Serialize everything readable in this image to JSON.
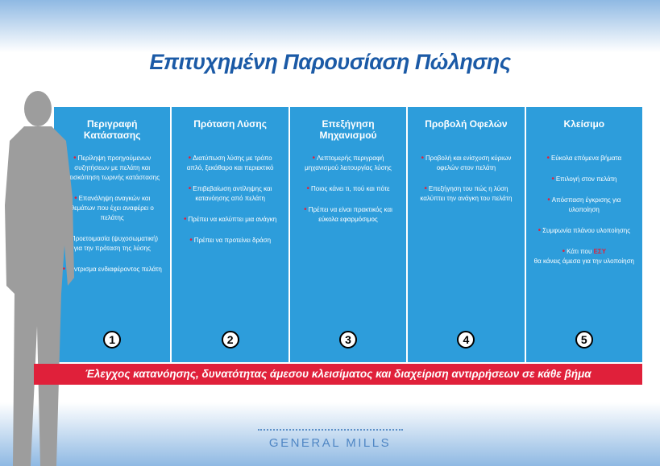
{
  "title": "Επιτυχημένη Παρουσίαση Πώλησης",
  "columns": [
    {
      "heading": "Περιγραφή Κατάστασης",
      "number": 1,
      "items": [
        "Περίληψη προηγούμενων συζητήσεων με πελάτη και επισκόπηση τωρινής κατάστασης",
        "Επανάληψη αναγκών και θεμάτων που έχει αναφέρει ο πελάτης",
        "Προετοιμασία (ψυχοσωματική) για την πρόταση της λύσης",
        "Κέντρισμα ενδιαφέροντος πελάτη"
      ]
    },
    {
      "heading": "Πρόταση Λύσης",
      "number": 2,
      "items": [
        "Διατύπωση λύσης με τρόπο απλό, ξεκάθαρο και περιεκτικό",
        "Επιβεβαίωση αντίληψης και κατανόησης από πελάτη",
        "Πρέπει να καλύπτει μια ανάγκη",
        "Πρέπει να προτείνει δράση"
      ]
    },
    {
      "heading": "Επεξήγηση Μηχανισμού",
      "number": 3,
      "items": [
        "Λεπτομερής περιγραφή μηχανισμού λειτουργίας λύσης",
        "Ποιος κάνει τι, πού και πότε",
        "Πρέπει να είναι πρακτικός και εύκολα εφαρμόσιμος"
      ]
    },
    {
      "heading": "Προβολή Οφελών",
      "number": 4,
      "items": [
        "Προβολή και ενίσχυση κύριων οφελών στον πελάτη",
        "Επεξήγηση του πώς η λύση καλύπτει την ανάγκη του πελάτη"
      ]
    },
    {
      "heading": "Κλείσιμο",
      "number": 5,
      "items": [
        "Εύκολα επόμενα βήματα",
        "Επιλογή στον πελάτη",
        "Απόσπαση έγκρισης για υλοποίηση",
        "Συμφωνία πλάνου υλοποίησης"
      ],
      "last_item": {
        "before": "Κάτι που",
        "highlight": "ΕΣΥ",
        "after": "θα κάνεις άμεσα για την υλοποίηση"
      }
    }
  ],
  "banner": "Έλεγχος κατανόησης, δυνατότητας άμεσου κλεισίματος και διαχείριση αντιρρήσεων σε κάθε βήμα",
  "footer": "GENERAL MILLS"
}
